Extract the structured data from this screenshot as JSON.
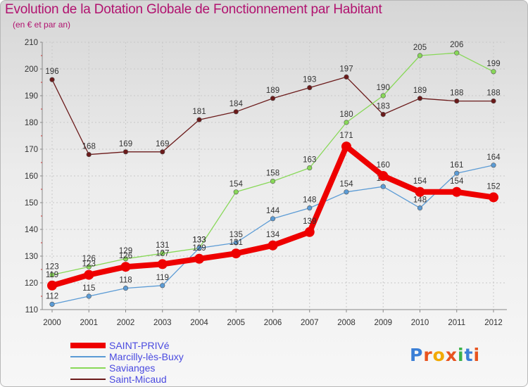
{
  "title": "Evolution de la Dotation Globale de Fonctionnement par Habitant",
  "subtitle": "(en € et par an)",
  "logo": "Proxiti",
  "chart_data": {
    "type": "line",
    "title": "Evolution de la Dotation Globale de Fonctionnement par Habitant",
    "ylabel": "(en € et par an)",
    "xlabel": "",
    "ylim": [
      110,
      210
    ],
    "yticks": [
      110,
      120,
      130,
      140,
      150,
      160,
      170,
      180,
      190,
      200,
      210
    ],
    "categories": [
      "2000",
      "2001",
      "2002",
      "2003",
      "2004",
      "2005",
      "2006",
      "2007",
      "2008",
      "2009",
      "2010",
      "2011",
      "2012"
    ],
    "series": [
      {
        "name": "Saint-Micaud",
        "color": "#6b1a1a",
        "values": [
          196,
          168,
          169,
          169,
          181,
          184,
          189,
          193,
          197,
          183,
          189,
          188,
          188
        ]
      },
      {
        "name": "Savianges",
        "color": "#88d858",
        "values": [
          123,
          126,
          129,
          131,
          133,
          154,
          158,
          163,
          180,
          190,
          205,
          206,
          199
        ]
      },
      {
        "name": "Marcilly-lès-Buxy",
        "color": "#5b9bd5",
        "values": [
          112,
          115,
          118,
          119,
          133,
          135,
          144,
          148,
          154,
          156,
          148,
          161,
          164
        ]
      },
      {
        "name": "SAINT-PRIVé",
        "color": "#ee0000",
        "values": [
          119,
          123,
          126,
          127,
          129,
          131,
          134,
          139,
          171,
          160,
          154,
          154,
          152
        ]
      }
    ]
  },
  "legend": [
    {
      "name": "SAINT-PRIVé",
      "color": "#ee0000"
    },
    {
      "name": "Marcilly-lès-Buxy",
      "color": "#5b9bd5"
    },
    {
      "name": "Savianges",
      "color": "#88d858"
    },
    {
      "name": "Saint-Micaud",
      "color": "#6b1a1a"
    }
  ]
}
